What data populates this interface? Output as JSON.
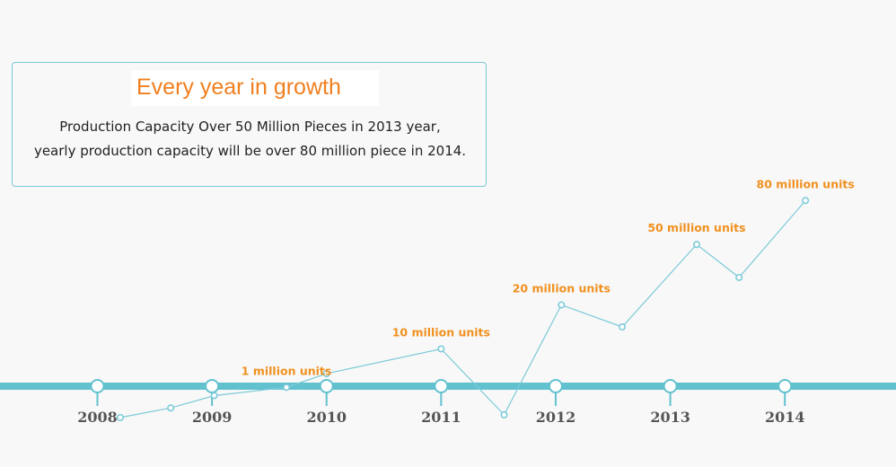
{
  "info": {
    "title": "Every year in growth",
    "line1": "Production Capacity Over 50 Million Pieces in 2013 year,",
    "line2": "yearly production capacity will be over 80 million piece in 2014."
  },
  "colors": {
    "line": "#7ccad8",
    "timeline": "#62c1cf",
    "label": "#f0901e",
    "year": "#555555",
    "title": "#f07f1f"
  },
  "chart_data": {
    "type": "line",
    "title": "",
    "xlabel": "",
    "ylabel": "",
    "grid": false,
    "years": [
      "2008",
      "2009",
      "2010",
      "2011",
      "2012",
      "2013",
      "2014"
    ],
    "x": [
      2008.2,
      2008.64,
      2009.02,
      2009.65,
      2010.0,
      2011.0,
      2011.55,
      2012.05,
      2012.58,
      2013.23,
      2013.6,
      2014.18
    ],
    "y": [
      -2,
      1.5,
      6,
      9,
      14,
      23,
      -1,
      39,
      31,
      61,
      49,
      77
    ],
    "xlim": [
      2007.15,
      2014.97
    ],
    "ylim": [
      -20,
      150
    ],
    "annotations": [
      {
        "label": "1 million units",
        "point_index": 3
      },
      {
        "label": "10 million units",
        "point_index": 5
      },
      {
        "label": "20 million units",
        "point_index": 7
      },
      {
        "label": "50 million units",
        "point_index": 9
      },
      {
        "label": "80 million units",
        "point_index": 11
      }
    ]
  }
}
